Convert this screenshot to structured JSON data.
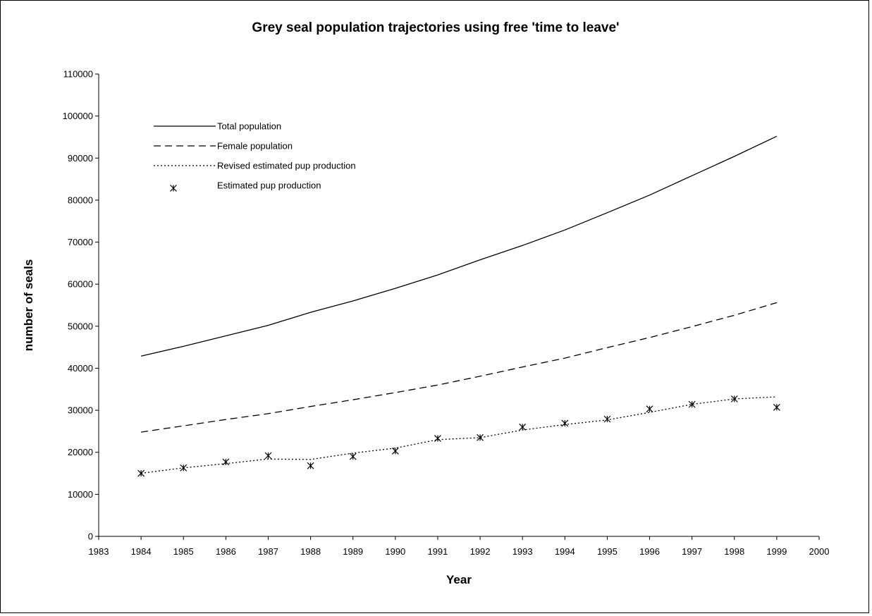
{
  "chart_data": {
    "type": "line",
    "title": "Grey seal population trajectories using free 'time to leave'",
    "xlabel": "Year",
    "ylabel": "number of seals",
    "xlim": [
      1983,
      2000
    ],
    "ylim": [
      0,
      110000
    ],
    "x_ticks": [
      "1983",
      "1984",
      "1985",
      "1986",
      "1987",
      "1988",
      "1989",
      "1990",
      "1991",
      "1992",
      "1993",
      "1994",
      "1995",
      "1996",
      "1997",
      "1998",
      "1999",
      "2000"
    ],
    "y_ticks": [
      "0",
      "10000",
      "20000",
      "30000",
      "40000",
      "50000",
      "60000",
      "70000",
      "80000",
      "90000",
      "100000",
      "110000"
    ],
    "grid": false,
    "legend_position": "top-left",
    "x": [
      1984,
      1985,
      1986,
      1987,
      1988,
      1989,
      1990,
      1991,
      1992,
      1993,
      1994,
      1995,
      1996,
      1997,
      1998,
      1999
    ],
    "series": [
      {
        "name": "Total population",
        "style": "solid",
        "values": [
          42900,
          45200,
          47700,
          50200,
          53300,
          56000,
          59000,
          62200,
          65800,
          69200,
          72900,
          77000,
          81200,
          85800,
          90400,
          95200
        ]
      },
      {
        "name": "Female population",
        "style": "dashed",
        "values": [
          24800,
          26300,
          27800,
          29200,
          30900,
          32500,
          34200,
          36000,
          38100,
          40300,
          42400,
          44900,
          47300,
          49900,
          52600,
          55600
        ]
      },
      {
        "name": "Revised estimated pup production",
        "style": "dotted",
        "values": [
          15000,
          16300,
          17300,
          18400,
          18300,
          19800,
          21000,
          23000,
          23500,
          25300,
          26600,
          27700,
          29500,
          31400,
          32700,
          33200
        ]
      },
      {
        "name": "Estimated pup production",
        "style": "markers",
        "values": [
          15000,
          16300,
          17700,
          19200,
          16800,
          19000,
          20300,
          23300,
          23500,
          26000,
          26900,
          27900,
          30300,
          31400,
          32700,
          30700
        ]
      }
    ]
  }
}
